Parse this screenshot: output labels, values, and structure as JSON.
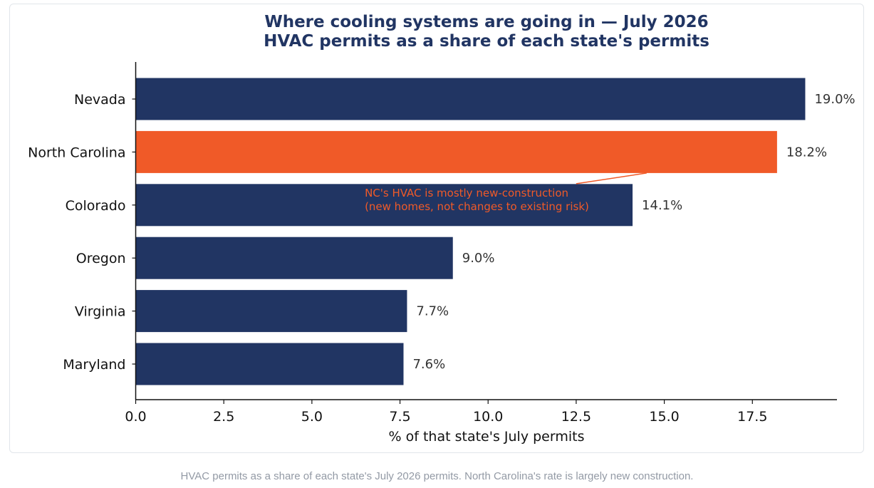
{
  "colors": {
    "bar_default": "#213563",
    "bar_highlight": "#f05a28",
    "title": "#213563",
    "annotation": "#f05a28",
    "value_label": "#333333",
    "caption": "#939aa5"
  },
  "chart_data": {
    "type": "bar",
    "orientation": "horizontal",
    "title": "Where cooling systems are going in — July 2026",
    "subtitle": "HVAC permits as a share of each state's permits",
    "xlabel": "% of that state's July permits",
    "ylabel": "",
    "xlim": [
      0,
      19.9
    ],
    "xticks": [
      0,
      2.5,
      5,
      7.5,
      10,
      12.5,
      15,
      17.5
    ],
    "xtick_labels": [
      "0.0",
      "2.5",
      "5.0",
      "7.5",
      "10.0",
      "12.5",
      "15.0",
      "17.5"
    ],
    "grid": false,
    "categories": [
      "Nevada",
      "North Carolina",
      "Colorado",
      "Oregon",
      "Virginia",
      "Maryland"
    ],
    "values": [
      19.0,
      18.2,
      14.1,
      9.0,
      7.7,
      7.6
    ],
    "value_labels": [
      "19.0%",
      "18.2%",
      "14.1%",
      "9.0%",
      "7.7%",
      "7.6%"
    ],
    "highlight": "North Carolina",
    "annotation": {
      "lines": [
        "NC's HVAC is mostly new-construction",
        "(new homes, not changes to existing risk)"
      ],
      "target": "North Carolina",
      "text_x": 6.5,
      "arrow_from_x": 12.5,
      "arrow_to_x": 14.5
    }
  },
  "caption": "HVAC permits as a share of each state's July 2026 permits. North Carolina's rate is largely new construction."
}
